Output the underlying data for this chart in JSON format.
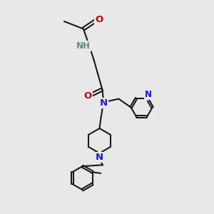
{
  "bg_color": "#e8e8e8",
  "bond_color": "#1a1a1a",
  "N_color": "#1414ee",
  "O_color": "#cc0000",
  "H_color": "#5a8a8a",
  "lw": 1.5,
  "fs": 8.5,
  "figsize": [
    3.0,
    3.0
  ],
  "dpi": 100,
  "xlim": [
    0,
    10
  ],
  "ylim": [
    0,
    10
  ]
}
